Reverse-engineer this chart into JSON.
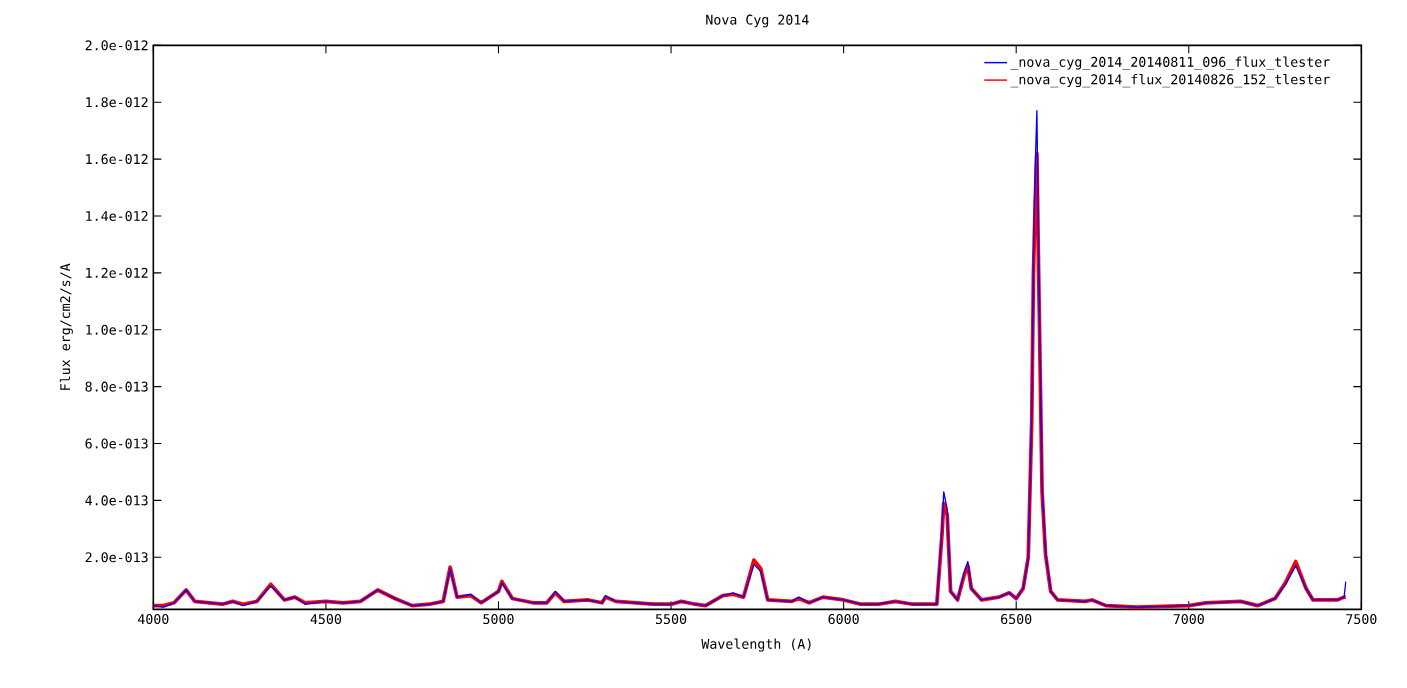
{
  "chart_data": {
    "type": "line",
    "title": "Nova Cyg 2014",
    "xlabel": "Wavelength (A)",
    "ylabel": "Flux erg/cm2/s/A",
    "x": [
      4000,
      4030,
      4060,
      4095,
      4120,
      4200,
      4230,
      4260,
      4300,
      4340,
      4380,
      4410,
      4440,
      4500,
      4550,
      4600,
      4650,
      4700,
      4750,
      4800,
      4840,
      4860,
      4880,
      4920,
      4950,
      5000,
      5010,
      5040,
      5100,
      5140,
      5165,
      5190,
      5260,
      5300,
      5310,
      5340,
      5400,
      5450,
      5500,
      5530,
      5570,
      5600,
      5650,
      5680,
      5710,
      5740,
      5760,
      5780,
      5850,
      5870,
      5900,
      5940,
      6000,
      6050,
      6100,
      6150,
      6200,
      6270,
      6285,
      6290,
      6300,
      6310,
      6330,
      6350,
      6360,
      6370,
      6400,
      6450,
      6480,
      6500,
      6520,
      6535,
      6545,
      6550,
      6555,
      6560,
      6565,
      6575,
      6585,
      6600,
      6620,
      6700,
      6720,
      6760,
      6850,
      7000,
      7050,
      7150,
      7200,
      7250,
      7280,
      7310,
      7340,
      7360,
      7430,
      7450,
      7455
    ],
    "series": [
      {
        "name": "_nova_cyg_2014_20140811_096_flux_tlester",
        "color": "#0000ff",
        "values": [
          3e-14,
          2.5e-14,
          4e-14,
          8.5e-14,
          4.5e-14,
          3.5e-14,
          4.5e-14,
          3e-14,
          4.5e-14,
          1e-13,
          5e-14,
          6e-14,
          3.5e-14,
          4.5e-14,
          4e-14,
          4.5e-14,
          8.5e-14,
          5.5e-14,
          3e-14,
          3.5e-14,
          4.5e-14,
          1.6e-13,
          6e-14,
          7e-14,
          4e-14,
          8e-14,
          1.1e-13,
          5.5e-14,
          4e-14,
          4e-14,
          8e-14,
          4.5e-14,
          5e-14,
          4e-14,
          6.5e-14,
          4.5e-14,
          4e-14,
          3.5e-14,
          3.5e-14,
          4.5e-14,
          3.5e-14,
          3e-14,
          6.5e-14,
          7.5e-14,
          6e-14,
          1.75e-13,
          1.5e-13,
          5e-14,
          4.5e-14,
          6e-14,
          4e-14,
          6e-14,
          5e-14,
          3.5e-14,
          3.5e-14,
          4.5e-14,
          3.5e-14,
          3.5e-14,
          3e-13,
          4.3e-13,
          3.7e-13,
          8e-14,
          5e-14,
          1.5e-13,
          1.85e-13,
          9e-14,
          5e-14,
          6e-14,
          7.5e-14,
          5.5e-14,
          9e-14,
          2e-13,
          7e-13,
          1.25e-12,
          1.57e-12,
          1.77e-12,
          1.25e-12,
          4.5e-13,
          2.2e-13,
          8e-14,
          5e-14,
          4.5e-14,
          5e-14,
          3e-14,
          2.5e-14,
          3e-14,
          4e-14,
          4.5e-14,
          3e-14,
          5.5e-14,
          1.05e-13,
          1.7e-13,
          9e-14,
          5e-14,
          5e-14,
          6e-14,
          1.15e-13
        ]
      },
      {
        "name": "_nova_cyg_2014_flux_20140826_152_tlester",
        "color": "#ff0000",
        "values": [
          3e-14,
          3e-14,
          4e-14,
          8.5e-14,
          4.5e-14,
          3.5e-14,
          4.5e-14,
          3.5e-14,
          4.5e-14,
          1.05e-13,
          5e-14,
          6e-14,
          4e-14,
          4.5e-14,
          4e-14,
          4.5e-14,
          8.5e-14,
          5.5e-14,
          3e-14,
          3.5e-14,
          4.5e-14,
          1.65e-13,
          6e-14,
          6.5e-14,
          4e-14,
          8e-14,
          1.15e-13,
          5.5e-14,
          4e-14,
          4e-14,
          7.5e-14,
          4.5e-14,
          5e-14,
          4e-14,
          6e-14,
          4.5e-14,
          4e-14,
          3.5e-14,
          3.5e-14,
          4.5e-14,
          3.5e-14,
          3e-14,
          6.5e-14,
          7e-14,
          6e-14,
          1.9e-13,
          1.6e-13,
          5e-14,
          4.5e-14,
          5.5e-14,
          4e-14,
          6e-14,
          5e-14,
          3.5e-14,
          3.5e-14,
          4.5e-14,
          3.5e-14,
          3.5e-14,
          2.8e-13,
          3.9e-13,
          3.5e-13,
          8e-14,
          5e-14,
          1.4e-13,
          1.7e-13,
          9e-14,
          5e-14,
          6e-14,
          7.5e-14,
          5.5e-14,
          9e-14,
          2e-13,
          6.8e-13,
          1.2e-12,
          1.45e-12,
          1.62e-12,
          1.2e-12,
          4.3e-13,
          2.1e-13,
          8e-14,
          5e-14,
          4.5e-14,
          5e-14,
          3e-14,
          2.5e-14,
          3e-14,
          4e-14,
          4.5e-14,
          3e-14,
          5.5e-14,
          1.1e-13,
          1.85e-13,
          9e-14,
          5e-14,
          5e-14,
          6e-14,
          6e-14
        ]
      }
    ],
    "xlim": [
      4000,
      7500
    ],
    "xticks": [
      4000,
      4500,
      5000,
      5500,
      6000,
      6500,
      7000,
      7500
    ],
    "ylim": [
      1.7e-14,
      2e-12
    ],
    "yticks": [
      {
        "value": 2e-13,
        "label": "2.0e-013"
      },
      {
        "value": 4e-13,
        "label": "4.0e-013"
      },
      {
        "value": 6e-13,
        "label": "6.0e-013"
      },
      {
        "value": 8e-13,
        "label": "8.0e-013"
      },
      {
        "value": 1e-12,
        "label": "1.0e-012"
      },
      {
        "value": 1.2e-12,
        "label": "1.2e-012"
      },
      {
        "value": 1.4e-12,
        "label": "1.4e-012"
      },
      {
        "value": 1.6e-12,
        "label": "1.6e-012"
      },
      {
        "value": 1.8e-12,
        "label": "1.8e-012"
      },
      {
        "value": 2e-12,
        "label": "2.0e-012"
      }
    ],
    "legend": "top right",
    "marker": "none",
    "line_style": "solid"
  }
}
